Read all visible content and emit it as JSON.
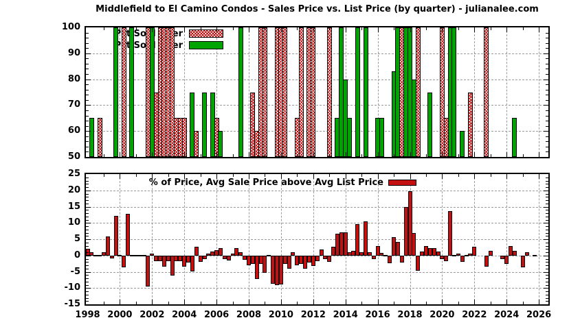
{
  "title": "Middlefield to El Camino Condos - Sales Price vs. List Price (by quarter) - julianalee.com",
  "colors": {
    "green_bar": "#00A400",
    "red_bar": "#C41010",
    "hatch_line": "#C00000",
    "grid": "#9a9a9a",
    "axis": "#000000",
    "background": "#ffffff"
  },
  "x_axis": {
    "range_start": 1998,
    "range_end": 2026.7,
    "labels": [
      "1998",
      "2000",
      "2002",
      "2004",
      "2006",
      "2008",
      "2010",
      "2012",
      "2014",
      "2016",
      "2018",
      "2020",
      "2022",
      "2024",
      "2026"
    ],
    "label_years": [
      1998,
      2000,
      2002,
      2004,
      2006,
      2008,
      2010,
      2012,
      2014,
      2016,
      2018,
      2020,
      2022,
      2024,
      2026
    ]
  },
  "chart_data": [
    {
      "id": "pct-sold-over",
      "type": "bar",
      "title": "",
      "ylim": [
        50,
        100
      ],
      "y_major_step": 10,
      "y_minor_step": 2,
      "y_tick_labels": [
        "100",
        "90",
        "80",
        "70",
        "60",
        "50"
      ],
      "y_tick_values": [
        100,
        90,
        80,
        70,
        60,
        50
      ],
      "gridlines_h": [
        90,
        80,
        70,
        60
      ],
      "grid": true,
      "legend_position": "top-left-inside",
      "legend": [
        {
          "label": "Pct Sold Over",
          "swatch": "hatch-red"
        },
        {
          "label": "Pct Sold Over",
          "swatch": "solid-green"
        }
      ],
      "series": [
        {
          "name": "Pct Sold Over",
          "style": "hatch-red",
          "points": [
            [
              "1998Q4",
              65
            ],
            [
              "2000Q2",
              100
            ],
            [
              "2001Q4",
              100
            ],
            [
              "2002Q2",
              75
            ],
            [
              "2002Q3",
              100
            ],
            [
              "2002Q4",
              100
            ],
            [
              "2003Q1",
              100
            ],
            [
              "2003Q2",
              100
            ],
            [
              "2003Q3",
              65
            ],
            [
              "2003Q4",
              65
            ],
            [
              "2004Q1",
              65
            ],
            [
              "2004Q4",
              60
            ],
            [
              "2006Q1",
              65
            ],
            [
              "2008Q2",
              75
            ],
            [
              "2008Q3",
              60
            ],
            [
              "2008Q4",
              100
            ],
            [
              "2009Q1",
              100
            ],
            [
              "2009Q4",
              100
            ],
            [
              "2010Q1",
              100
            ],
            [
              "2010Q2",
              100
            ],
            [
              "2011Q1",
              65
            ],
            [
              "2011Q2",
              100
            ],
            [
              "2011Q4",
              100
            ],
            [
              "2012Q1",
              100
            ],
            [
              "2013Q1",
              100
            ],
            [
              "2017Q3",
              100
            ],
            [
              "2018Q3",
              100
            ],
            [
              "2020Q1",
              100
            ],
            [
              "2020Q2",
              65
            ],
            [
              "2021Q4",
              75
            ],
            [
              "2022Q4",
              100
            ]
          ]
        },
        {
          "name": "Pct Sold Over",
          "style": "solid-green",
          "points": [
            [
              "1998Q2",
              65
            ],
            [
              "1999Q4",
              100
            ],
            [
              "2000Q4",
              100
            ],
            [
              "2002Q1",
              100
            ],
            [
              "2004Q3",
              75
            ],
            [
              "2005Q2",
              75
            ],
            [
              "2005Q4",
              75
            ],
            [
              "2006Q2",
              60
            ],
            [
              "2007Q3",
              100
            ],
            [
              "2013Q3",
              65
            ],
            [
              "2013Q4",
              100
            ],
            [
              "2014Q1",
              80
            ],
            [
              "2014Q2",
              65
            ],
            [
              "2014Q4",
              100
            ],
            [
              "2015Q2",
              100
            ],
            [
              "2016Q1",
              65
            ],
            [
              "2016Q2",
              65
            ],
            [
              "2017Q1",
              83
            ],
            [
              "2017Q2",
              100
            ],
            [
              "2017Q4",
              100
            ],
            [
              "2018Q1",
              100
            ],
            [
              "2018Q2",
              80
            ],
            [
              "2019Q2",
              75
            ],
            [
              "2020Q3",
              100
            ],
            [
              "2020Q4",
              100
            ],
            [
              "2021Q2",
              60
            ],
            [
              "2024Q3",
              65
            ]
          ]
        }
      ]
    },
    {
      "id": "sale-vs-list-pct",
      "type": "bar",
      "title": "",
      "ylim": [
        -15,
        25
      ],
      "y_major_step": 5,
      "y_minor_step": 1,
      "y_tick_labels": [
        "25",
        "20",
        "15",
        "10",
        "5",
        "0",
        "-5",
        "-10",
        "-15"
      ],
      "y_tick_values": [
        25,
        20,
        15,
        10,
        5,
        0,
        -5,
        -10,
        -15
      ],
      "gridlines_h": [
        20,
        15,
        10,
        5,
        0,
        -5,
        -10
      ],
      "grid": true,
      "legend_position": "top-right-inside",
      "legend": [
        {
          "label": "% of Price, Avg Sale Price above Avg List Price",
          "swatch": "solid-red"
        }
      ],
      "series": [
        {
          "name": "% of Price, Avg Sale Price above Avg List Price",
          "style": "solid-red",
          "points": [
            [
              "1998Q1",
              2
            ],
            [
              "1998Q2",
              1
            ],
            [
              "1998Q3",
              0
            ],
            [
              "1998Q4",
              0
            ],
            [
              "1999Q1",
              1
            ],
            [
              "1999Q2",
              5.8
            ],
            [
              "1999Q3",
              -0.8
            ],
            [
              "1999Q4",
              12.2
            ],
            [
              "2000Q1",
              0
            ],
            [
              "2000Q2",
              -3.7
            ],
            [
              "2000Q3",
              12.8
            ],
            [
              "2000Q4",
              0
            ],
            [
              "2001Q1",
              0
            ],
            [
              "2001Q2",
              0
            ],
            [
              "2001Q3",
              0
            ],
            [
              "2001Q4",
              -9.5
            ],
            [
              "2002Q1",
              0.6
            ],
            [
              "2002Q2",
              -1.8
            ],
            [
              "2002Q3",
              -1.8
            ],
            [
              "2002Q4",
              -3.5
            ],
            [
              "2003Q1",
              -1.7
            ],
            [
              "2003Q2",
              -6.1
            ],
            [
              "2003Q3",
              -1.7
            ],
            [
              "2003Q4",
              -1.7
            ],
            [
              "2004Q1",
              -3.5
            ],
            [
              "2004Q2",
              -2.1
            ],
            [
              "2004Q3",
              -4.9
            ],
            [
              "2004Q4",
              2.7
            ],
            [
              "2005Q1",
              -1.9
            ],
            [
              "2005Q2",
              -1.1
            ],
            [
              "2005Q3",
              0.5
            ],
            [
              "2005Q4",
              1.2
            ],
            [
              "2006Q1",
              1.7
            ],
            [
              "2006Q2",
              2.2
            ],
            [
              "2006Q3",
              -1
            ],
            [
              "2006Q4",
              -1.5
            ],
            [
              "2007Q1",
              0.5
            ],
            [
              "2007Q2",
              2.2
            ],
            [
              "2007Q3",
              1.1
            ],
            [
              "2007Q4",
              -1.4
            ],
            [
              "2008Q1",
              -3
            ],
            [
              "2008Q2",
              -2.5
            ],
            [
              "2008Q3",
              -7.2
            ],
            [
              "2008Q4",
              -2.5
            ],
            [
              "2009Q1",
              -5.4
            ],
            [
              "2009Q2",
              0
            ],
            [
              "2009Q3",
              -8.7
            ],
            [
              "2009Q4",
              -9
            ],
            [
              "2010Q1",
              -8.9
            ],
            [
              "2010Q2",
              -2.5
            ],
            [
              "2010Q3",
              -4.1
            ],
            [
              "2010Q4",
              0.9
            ],
            [
              "2011Q1",
              -3
            ],
            [
              "2011Q2",
              -2.5
            ],
            [
              "2011Q3",
              -4.1
            ],
            [
              "2011Q4",
              -2.1
            ],
            [
              "2012Q1",
              -3.2
            ],
            [
              "2012Q2",
              -1.7
            ],
            [
              "2012Q3",
              1.8
            ],
            [
              "2012Q4",
              -1.1
            ],
            [
              "2013Q1",
              -1.9
            ],
            [
              "2013Q2",
              2.7
            ],
            [
              "2013Q3",
              6.6
            ],
            [
              "2013Q4",
              7.1
            ],
            [
              "2014Q1",
              7.1
            ],
            [
              "2014Q2",
              1
            ],
            [
              "2014Q3",
              1.5
            ],
            [
              "2014Q4",
              9.7
            ],
            [
              "2015Q1",
              1
            ],
            [
              "2015Q2",
              10.5
            ],
            [
              "2015Q3",
              1
            ],
            [
              "2015Q4",
              -1.1
            ],
            [
              "2016Q1",
              3
            ],
            [
              "2016Q2",
              0.8
            ],
            [
              "2016Q3",
              0
            ],
            [
              "2016Q4",
              -2.3
            ],
            [
              "2017Q1",
              5.6
            ],
            [
              "2017Q2",
              4.2
            ],
            [
              "2017Q3",
              -2.1
            ],
            [
              "2017Q4",
              15
            ],
            [
              "2018Q1",
              19.7
            ],
            [
              "2018Q2",
              6.9
            ],
            [
              "2018Q3",
              -4.7
            ],
            [
              "2018Q4",
              1.2
            ],
            [
              "2019Q1",
              3
            ],
            [
              "2019Q2",
              2.2
            ],
            [
              "2019Q3",
              2.2
            ],
            [
              "2019Q4",
              1.2
            ],
            [
              "2020Q1",
              -1
            ],
            [
              "2020Q2",
              -1.7
            ],
            [
              "2020Q3",
              13.6
            ],
            [
              "2020Q4",
              0
            ],
            [
              "2021Q1",
              0.5
            ],
            [
              "2021Q2",
              -1.9
            ],
            [
              "2021Q3",
              0
            ],
            [
              "2021Q4",
              0.5
            ],
            [
              "2022Q1",
              2.7
            ],
            [
              "2022Q4",
              -3.5
            ],
            [
              "2023Q1",
              1.4
            ],
            [
              "2023Q4",
              -1
            ],
            [
              "2024Q1",
              -2.5
            ],
            [
              "2024Q2",
              2.8
            ],
            [
              "2024Q3",
              1.4
            ],
            [
              "2025Q1",
              -3.6
            ],
            [
              "2025Q2",
              0.9
            ],
            [
              "2025Q4",
              0
            ]
          ]
        }
      ]
    }
  ]
}
